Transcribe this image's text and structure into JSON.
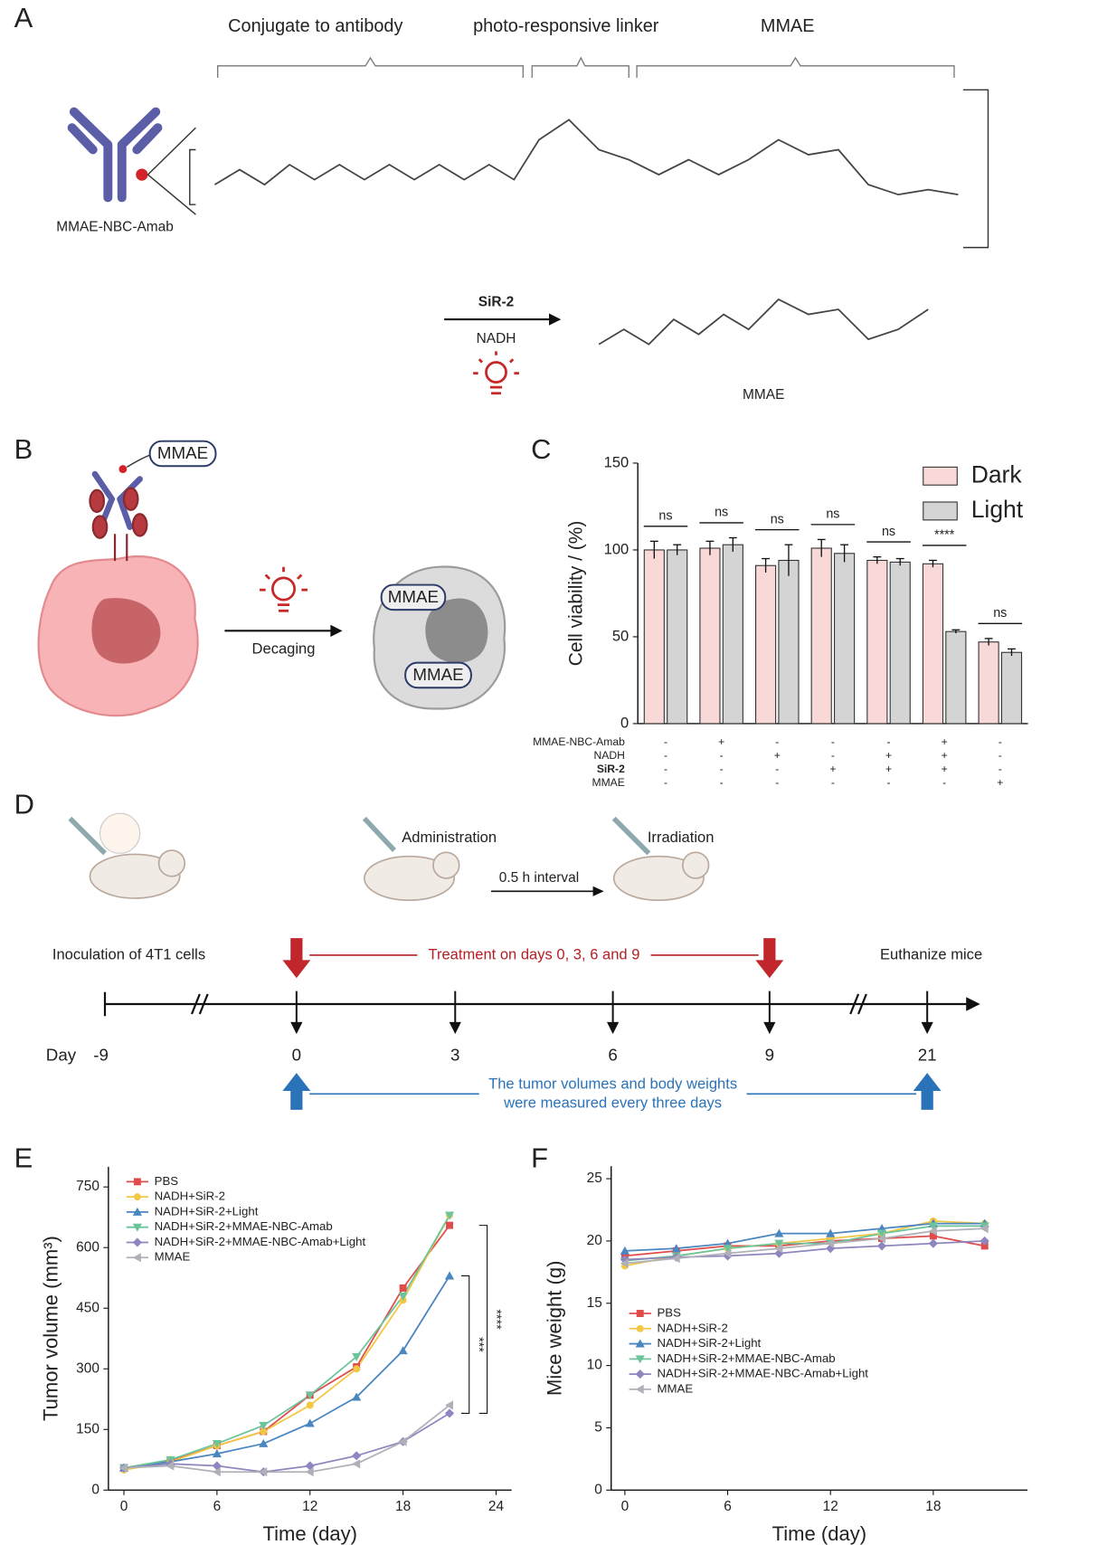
{
  "panel_labels": [
    "A",
    "B",
    "C",
    "D",
    "E",
    "F"
  ],
  "panel_a": {
    "brackets": [
      "Conjugate to antibody",
      "photo-responsive linker",
      "MMAE"
    ],
    "conjugate_name": "MMAE-NBC-Amab",
    "reagent": "SiR-2",
    "cofactor": "NADH",
    "product": "MMAE"
  },
  "panel_b": {
    "tag_top": "MMAE",
    "tag_1": "MMAE",
    "tag_2": "MMAE",
    "arrow_label": "Decaging"
  },
  "panel_d": {
    "administration": "Administration",
    "irradiation": "Irradiation",
    "interval": "0.5 h interval",
    "inoculation": "Inoculation of 4T1 cells",
    "treatment": "Treatment on days 0, 3, 6 and 9",
    "euthanize": "Euthanize mice",
    "day_label": "Day",
    "days": [
      "-9",
      "0",
      "3",
      "6",
      "9",
      "21"
    ],
    "measure_lines": [
      "The tumor volumes and body weights",
      "were measured every three days"
    ]
  },
  "chart_data": [
    {
      "type": "bar",
      "ylabel": "Cell viability / (%)",
      "ylim": [
        0,
        150
      ],
      "yticks": [
        0,
        50,
        100,
        150
      ],
      "legend": "upper right",
      "series": [
        {
          "name": "Dark",
          "color": "#f9d8d8",
          "values": [
            100,
            101,
            91,
            101,
            94,
            92,
            47
          ],
          "errors": [
            5,
            4,
            4,
            5,
            2,
            2,
            2
          ]
        },
        {
          "name": "Light",
          "color": "#d4d4d4",
          "values": [
            100,
            103,
            94,
            98,
            93,
            53,
            41
          ],
          "errors": [
            3,
            4,
            9,
            5,
            2,
            1,
            2
          ]
        }
      ],
      "significance": [
        "ns",
        "ns",
        "ns",
        "ns",
        "ns",
        "****",
        "ns"
      ],
      "conditions": {
        "labels": [
          "MMAE-NBC-Amab",
          "NADH",
          "SiR-2",
          "MMAE"
        ],
        "rows": [
          [
            "-",
            "+",
            "-",
            "-",
            "-",
            "+",
            "-"
          ],
          [
            "-",
            "-",
            "+",
            "-",
            "+",
            "+",
            "-"
          ],
          [
            "-",
            "-",
            "-",
            "+",
            "+",
            "+",
            "-"
          ],
          [
            "-",
            "-",
            "-",
            "-",
            "-",
            "-",
            "+"
          ]
        ]
      }
    },
    {
      "type": "line",
      "xlabel": "Time (day)",
      "ylabel": "Tumor volume (mm³)",
      "x": [
        0,
        3,
        6,
        9,
        12,
        15,
        18,
        21
      ],
      "xlim": [
        -1,
        25
      ],
      "xticks": [
        0,
        6,
        12,
        18,
        24
      ],
      "ylim": [
        0,
        800
      ],
      "yticks": [
        0,
        150,
        300,
        450,
        600,
        750
      ],
      "legend": "upper left",
      "series": [
        {
          "name": "PBS",
          "color": "#e04b4b",
          "marker": "square",
          "values": [
            55,
            72,
            110,
            145,
            235,
            305,
            500,
            655
          ]
        },
        {
          "name": "NADH+SiR-2",
          "color": "#f2c744",
          "marker": "circle",
          "values": [
            50,
            70,
            110,
            145,
            210,
            300,
            470,
            680
          ]
        },
        {
          "name": "NADH+SiR-2+Light",
          "color": "#4a86c0",
          "marker": "triangle-up",
          "values": [
            55,
            70,
            90,
            115,
            165,
            230,
            345,
            530
          ]
        },
        {
          "name": "NADH+SiR-2+MMAE-NBC-Amab",
          "color": "#6cc49a",
          "marker": "triangle-down",
          "values": [
            55,
            75,
            115,
            160,
            235,
            330,
            480,
            680
          ]
        },
        {
          "name": "NADH+SiR-2+MMAE-NBC-Amab+Light",
          "color": "#8e86bf",
          "marker": "diamond",
          "values": [
            55,
            65,
            60,
            45,
            60,
            85,
            120,
            190
          ]
        },
        {
          "name": "MMAE",
          "color": "#b0b0b8",
          "marker": "triangle-left",
          "values": [
            55,
            60,
            45,
            45,
            45,
            65,
            120,
            210
          ]
        }
      ],
      "significance": [
        "***",
        "****"
      ]
    },
    {
      "type": "line",
      "xlabel": "Time (day)",
      "ylabel": "Mice weight (g)",
      "x": [
        0,
        3,
        6,
        9,
        12,
        15,
        18,
        21
      ],
      "xlim": [
        -0.8,
        23.5
      ],
      "xticks": [
        0,
        6,
        12,
        18
      ],
      "ylim": [
        0,
        26
      ],
      "yticks": [
        0,
        5,
        10,
        15,
        20,
        25
      ],
      "legend": "lower left",
      "series": [
        {
          "name": "PBS",
          "color": "#e04b4b",
          "marker": "square",
          "values": [
            18.8,
            19.2,
            19.6,
            19.6,
            20.0,
            20.2,
            20.4,
            19.6
          ]
        },
        {
          "name": "NADH+SiR-2",
          "color": "#f2c744",
          "marker": "circle",
          "values": [
            18.0,
            18.8,
            19.4,
            19.8,
            20.2,
            20.6,
            21.6,
            21.4
          ]
        },
        {
          "name": "NADH+SiR-2+Light",
          "color": "#4a86c0",
          "marker": "triangle-up",
          "values": [
            19.2,
            19.4,
            19.8,
            20.6,
            20.6,
            21.0,
            21.4,
            21.4
          ]
        },
        {
          "name": "NADH+SiR-2+MMAE-NBC-Amab",
          "color": "#6cc49a",
          "marker": "triangle-down",
          "values": [
            18.4,
            18.8,
            19.4,
            19.8,
            19.8,
            20.6,
            21.2,
            21.2
          ]
        },
        {
          "name": "NADH+SiR-2+MMAE-NBC-Amab+Light",
          "color": "#8e86bf",
          "marker": "diamond",
          "values": [
            18.5,
            18.7,
            18.8,
            19.0,
            19.4,
            19.6,
            19.8,
            20.0
          ]
        },
        {
          "name": "MMAE",
          "color": "#b0b0b8",
          "marker": "triangle-left",
          "values": [
            18.2,
            18.6,
            19.0,
            19.4,
            19.8,
            20.2,
            20.8,
            21.0
          ]
        }
      ]
    }
  ]
}
